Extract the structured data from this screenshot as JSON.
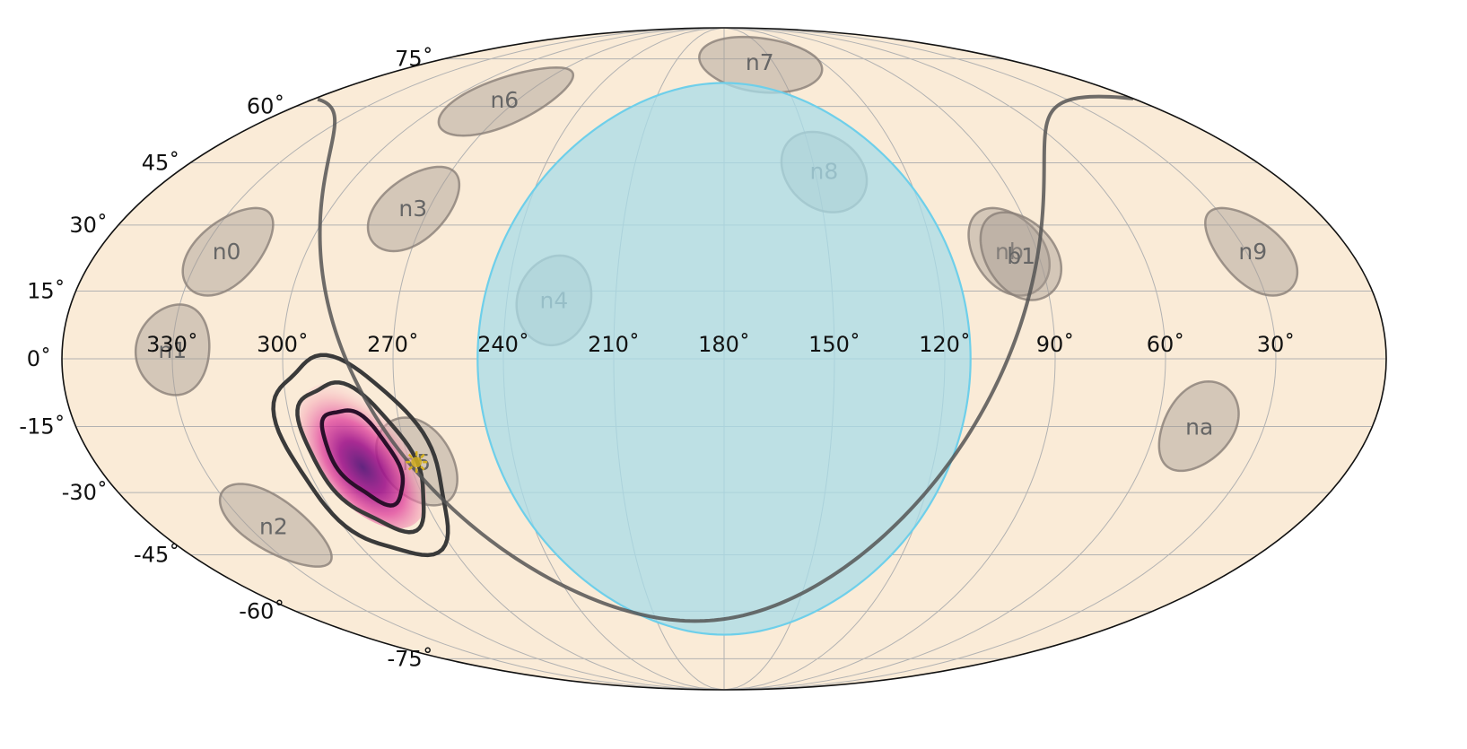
{
  "chart_data": {
    "type": "scatter",
    "projection": "mollweide",
    "title": "",
    "xlabel": "",
    "ylabel": "",
    "ra_direction": "decreasing to the right",
    "grid": true,
    "colors": {
      "sky": "#faebd7",
      "earth_occultation": "#a8dce8",
      "earth_edge": "#6ecfea",
      "detector_fill": "#a79c92",
      "detector_label": "#666666",
      "sun_marker": "#d4b020",
      "galactic_plane": "#555555",
      "contour": "#3a3a3a",
      "probability_low": "#f8c8d0",
      "probability_high": "#7a1e8c"
    },
    "x_ticks": [
      {
        "ra": 330,
        "label": "330˚"
      },
      {
        "ra": 300,
        "label": "300˚"
      },
      {
        "ra": 270,
        "label": "270˚"
      },
      {
        "ra": 240,
        "label": "240˚"
      },
      {
        "ra": 210,
        "label": "210˚"
      },
      {
        "ra": 180,
        "label": "180˚"
      },
      {
        "ra": 150,
        "label": "150˚"
      },
      {
        "ra": 120,
        "label": "120˚"
      },
      {
        "ra": 90,
        "label": "90˚"
      },
      {
        "ra": 60,
        "label": "60˚"
      },
      {
        "ra": 30,
        "label": "30˚"
      }
    ],
    "y_ticks": [
      {
        "dec": 75,
        "label": "75˚"
      },
      {
        "dec": 60,
        "label": "60˚"
      },
      {
        "dec": 45,
        "label": "45˚"
      },
      {
        "dec": 30,
        "label": "30˚"
      },
      {
        "dec": 15,
        "label": "15˚"
      },
      {
        "dec": 0,
        "label": "0˚"
      },
      {
        "dec": -15,
        "label": "-15˚"
      },
      {
        "dec": -30,
        "label": "-30˚"
      },
      {
        "dec": -45,
        "label": "-45˚"
      },
      {
        "dec": -60,
        "label": "-60˚"
      },
      {
        "dec": -75,
        "label": "-75˚"
      }
    ],
    "earth_occultation": {
      "center": [
        180,
        0
      ],
      "angular_radius_deg": 67
    },
    "detectors": [
      {
        "name": "n0",
        "ra": 323,
        "dec": 24,
        "radius_deg": 10
      },
      {
        "name": "n1",
        "ra": 330,
        "dec": 2,
        "radius_deg": 10
      },
      {
        "name": "n2",
        "ra": 322,
        "dec": -38,
        "radius_deg": 10
      },
      {
        "name": "n3",
        "ra": 275,
        "dec": 34,
        "radius_deg": 10
      },
      {
        "name": "n4",
        "ra": 227,
        "dec": 13,
        "radius_deg": 10
      },
      {
        "name": "n5",
        "ra": 268,
        "dec": -23,
        "radius_deg": 10
      },
      {
        "name": "n6",
        "ra": 276,
        "dec": 62,
        "radius_deg": 10
      },
      {
        "name": "n7",
        "ra": 158,
        "dec": 74,
        "radius_deg": 10
      },
      {
        "name": "n8",
        "ra": 147,
        "dec": 43,
        "radius_deg": 10
      },
      {
        "name": "n9",
        "ra": 28,
        "dec": 24,
        "radius_deg": 10
      },
      {
        "name": "na",
        "ra": 48,
        "dec": -15,
        "radius_deg": 10
      },
      {
        "name": "nb",
        "ra": 98,
        "dec": 24,
        "radius_deg": 10
      },
      {
        "name": "b1",
        "ra": 95,
        "dec": 23,
        "radius_deg": 10
      }
    ],
    "localization": {
      "best_fit": {
        "ra": 282,
        "dec": -20
      },
      "levels": [
        "1 sigma",
        "2 sigma",
        "3 sigma"
      ]
    },
    "sun": {
      "ra": 268,
      "dec": -23
    }
  }
}
